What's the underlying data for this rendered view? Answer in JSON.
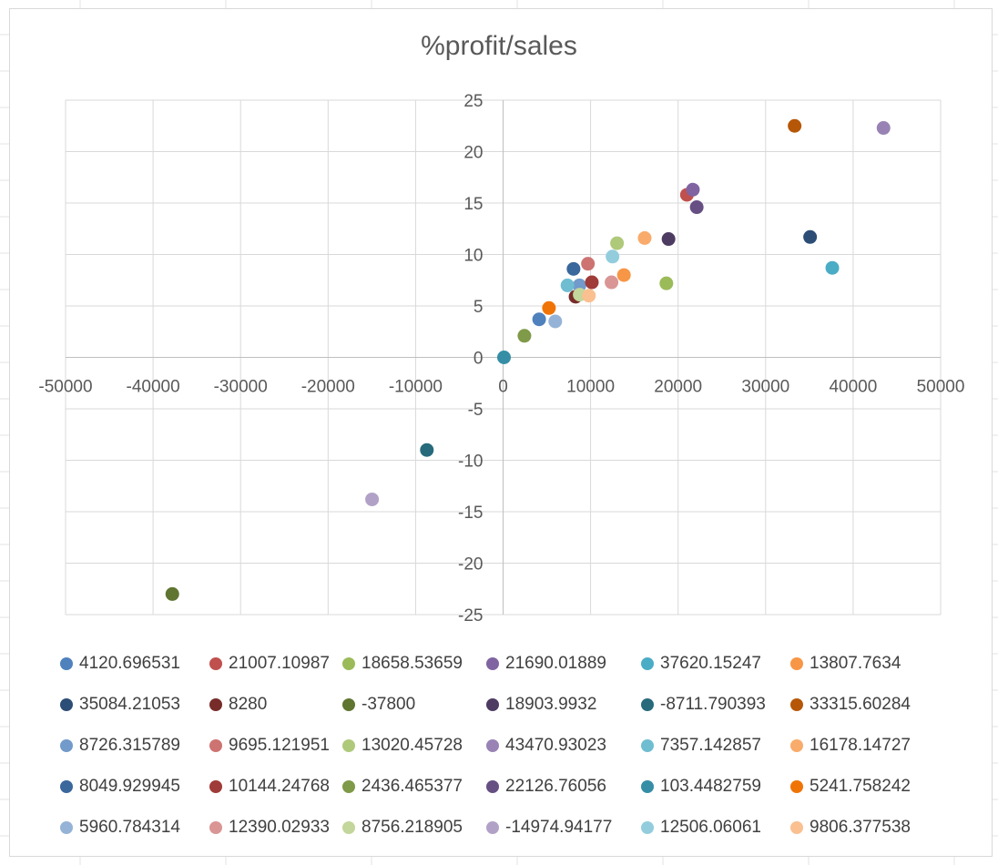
{
  "chart_data": {
    "type": "scatter",
    "title": "%profit/sales",
    "xlabel": "",
    "ylabel": "",
    "xlim": [
      -50000,
      50000
    ],
    "ylim": [
      -25,
      25
    ],
    "x_ticks": [
      -50000,
      -40000,
      -30000,
      -20000,
      -10000,
      0,
      10000,
      20000,
      30000,
      40000,
      50000
    ],
    "y_ticks": [
      25,
      20,
      15,
      10,
      5,
      0,
      -5,
      -10,
      -15,
      -20,
      -25
    ],
    "grid": true,
    "legend_position": "bottom",
    "series": [
      {
        "name": "4120.696531",
        "x": 4120.696531,
        "y": 3.7,
        "color": "#4f81bd"
      },
      {
        "name": "21007.10987",
        "x": 21007.10987,
        "y": 15.8,
        "color": "#c0504d"
      },
      {
        "name": "18658.53659",
        "x": 18658.53659,
        "y": 7.2,
        "color": "#9bbb59"
      },
      {
        "name": "21690.01889",
        "x": 21690.01889,
        "y": 16.3,
        "color": "#8064a2"
      },
      {
        "name": "37620.15247",
        "x": 37620.15247,
        "y": 8.7,
        "color": "#4bacc6"
      },
      {
        "name": "13807.7634",
        "x": 13807.7634,
        "y": 8.0,
        "color": "#f79646"
      },
      {
        "name": "35084.21053",
        "x": 35084.21053,
        "y": 11.7,
        "color": "#2c4d75"
      },
      {
        "name": "8280",
        "x": 8280,
        "y": 5.9,
        "color": "#772c2a"
      },
      {
        "name": "-37800",
        "x": -37800,
        "y": -23.0,
        "color": "#5f7530"
      },
      {
        "name": "18903.9932",
        "x": 18903.9932,
        "y": 11.5,
        "color": "#4d3b62"
      },
      {
        "name": "-8711.790393",
        "x": -8711.790393,
        "y": -9.0,
        "color": "#276a7c"
      },
      {
        "name": "33315.60284",
        "x": 33315.60284,
        "y": 22.5,
        "color": "#b65708"
      },
      {
        "name": "8726.315789",
        "x": 8726.315789,
        "y": 7.0,
        "color": "#729aca"
      },
      {
        "name": "9695.121951",
        "x": 9695.121951,
        "y": 9.1,
        "color": "#cd7371"
      },
      {
        "name": "13020.45728",
        "x": 13020.45728,
        "y": 11.1,
        "color": "#afc97a"
      },
      {
        "name": "43470.93023",
        "x": 43470.93023,
        "y": 22.3,
        "color": "#9983b5"
      },
      {
        "name": "7357.142857",
        "x": 7357.142857,
        "y": 7.0,
        "color": "#6fbdd1"
      },
      {
        "name": "16178.14727",
        "x": 16178.14727,
        "y": 11.6,
        "color": "#f9ab6b"
      },
      {
        "name": "8049.929945",
        "x": 8049.929945,
        "y": 8.6,
        "color": "#3a679c"
      },
      {
        "name": "10144.24768",
        "x": 10144.24768,
        "y": 7.3,
        "color": "#9f3b38"
      },
      {
        "name": "2436.465377",
        "x": 2436.465377,
        "y": 2.1,
        "color": "#7f9a48"
      },
      {
        "name": "22126.76056",
        "x": 22126.76056,
        "y": 14.6,
        "color": "#664f83"
      },
      {
        "name": "103.4482759",
        "x": 103.4482759,
        "y": 0.0,
        "color": "#358ea6"
      },
      {
        "name": "5241.758242",
        "x": 5241.758242,
        "y": 4.8,
        "color": "#f07405"
      },
      {
        "name": "5960.784314",
        "x": 5960.784314,
        "y": 3.5,
        "color": "#95b3d7"
      },
      {
        "name": "12390.02933",
        "x": 12390.02933,
        "y": 7.3,
        "color": "#d99694"
      },
      {
        "name": "8756.218905",
        "x": 8756.218905,
        "y": 6.1,
        "color": "#c3d69b"
      },
      {
        "name": "-14974.94177",
        "x": -14974.94177,
        "y": -13.8,
        "color": "#b2a1c7"
      },
      {
        "name": "12506.06061",
        "x": 12506.06061,
        "y": 9.8,
        "color": "#93cddd"
      },
      {
        "name": "9806.377538",
        "x": 9806.377538,
        "y": 6.0,
        "color": "#fac090"
      }
    ]
  }
}
